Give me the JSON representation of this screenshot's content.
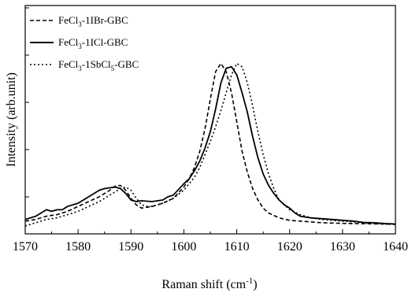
{
  "chart_data": {
    "type": "line",
    "xlabel": "Raman shift (cm",
    "xlabel_sup": "-1",
    "xlabel_close": ")",
    "ylabel": "Intensity (arb.unit)",
    "xlim": [
      1570,
      1640
    ],
    "ylim": [
      0,
      1.1
    ],
    "xticks": [
      "1570",
      "1580",
      "1590",
      "1600",
      "1610",
      "1620",
      "1630",
      "1640"
    ],
    "grid": false,
    "legend_position": "top-left",
    "series": [
      {
        "legend": {
          "pre": "FeCl",
          "sub1": "3",
          "mid": "-1IBr-GBC",
          "sub2": "",
          "post": ""
        },
        "dash": "dashed",
        "color": "#000000",
        "x": [
          1570,
          1572,
          1574,
          1576,
          1578,
          1580,
          1582,
          1584,
          1586,
          1587,
          1588,
          1589,
          1590,
          1591,
          1592,
          1594,
          1596,
          1598,
          1600,
          1601,
          1602,
          1603,
          1604,
          1605,
          1606,
          1607,
          1608,
          1609,
          1610,
          1611,
          1612,
          1613,
          1614,
          1615,
          1616,
          1618,
          1620,
          1622,
          1624,
          1626,
          1628,
          1630,
          1632,
          1634,
          1636,
          1638,
          1640
        ],
        "y": [
          0.03,
          0.04,
          0.06,
          0.07,
          0.09,
          0.12,
          0.15,
          0.18,
          0.22,
          0.245,
          0.25,
          0.22,
          0.17,
          0.13,
          0.11,
          0.12,
          0.14,
          0.17,
          0.24,
          0.29,
          0.36,
          0.46,
          0.6,
          0.78,
          0.95,
          1.0,
          0.95,
          0.82,
          0.64,
          0.46,
          0.33,
          0.23,
          0.16,
          0.11,
          0.08,
          0.05,
          0.035,
          0.03,
          0.025,
          0.02,
          0.018,
          0.016,
          0.015,
          0.014,
          0.013,
          0.012,
          0.01
        ]
      },
      {
        "legend": {
          "pre": "FeCl",
          "sub1": "3",
          "mid": "-1ICl-GBC",
          "sub2": "",
          "post": ""
        },
        "dash": "solid",
        "color": "#000000",
        "x": [
          1570,
          1572,
          1573,
          1574,
          1575,
          1576,
          1577,
          1578,
          1580,
          1582,
          1584,
          1585,
          1586,
          1587,
          1588,
          1589,
          1590,
          1591,
          1592,
          1594,
          1596,
          1597,
          1598,
          1600,
          1601,
          1602,
          1603,
          1604,
          1605,
          1606,
          1607,
          1608,
          1609,
          1610,
          1611,
          1612,
          1613,
          1614,
          1615,
          1616,
          1617,
          1618,
          1619,
          1620,
          1621,
          1622,
          1624,
          1626,
          1628,
          1630,
          1632,
          1634,
          1636,
          1638,
          1640
        ],
        "y": [
          0.04,
          0.06,
          0.08,
          0.1,
          0.09,
          0.1,
          0.1,
          0.12,
          0.14,
          0.18,
          0.22,
          0.23,
          0.235,
          0.24,
          0.23,
          0.2,
          0.16,
          0.15,
          0.155,
          0.15,
          0.16,
          0.18,
          0.19,
          0.26,
          0.29,
          0.34,
          0.4,
          0.48,
          0.58,
          0.72,
          0.88,
          0.97,
          0.98,
          0.93,
          0.82,
          0.7,
          0.55,
          0.42,
          0.32,
          0.25,
          0.2,
          0.16,
          0.13,
          0.11,
          0.08,
          0.06,
          0.05,
          0.045,
          0.04,
          0.035,
          0.03,
          0.022,
          0.02,
          0.015,
          0.012
        ]
      },
      {
        "legend": {
          "pre": "FeCl",
          "sub1": "3",
          "mid": "-1SbCl",
          "sub2": "5",
          "post": "-GBC"
        },
        "dash": "dotted",
        "color": "#000000",
        "x": [
          1570,
          1572,
          1574,
          1576,
          1578,
          1580,
          1582,
          1584,
          1586,
          1588,
          1589,
          1590,
          1591,
          1592,
          1593,
          1594,
          1596,
          1598,
          1600,
          1602,
          1603,
          1604,
          1605,
          1606,
          1607,
          1608,
          1609,
          1610,
          1611,
          1612,
          1613,
          1614,
          1615,
          1616,
          1617,
          1618,
          1620,
          1622,
          1624,
          1626,
          1628,
          1630,
          1632,
          1634,
          1636,
          1638,
          1640
        ],
        "y": [
          0.0,
          0.02,
          0.04,
          0.05,
          0.07,
          0.09,
          0.12,
          0.15,
          0.19,
          0.23,
          0.24,
          0.22,
          0.17,
          0.13,
          0.12,
          0.12,
          0.14,
          0.17,
          0.22,
          0.3,
          0.36,
          0.44,
          0.52,
          0.61,
          0.71,
          0.82,
          0.93,
          1.0,
          0.98,
          0.88,
          0.74,
          0.58,
          0.44,
          0.32,
          0.23,
          0.16,
          0.1,
          0.07,
          0.05,
          0.04,
          0.035,
          0.03,
          0.025,
          0.02,
          0.015,
          0.012,
          0.01
        ]
      }
    ]
  }
}
